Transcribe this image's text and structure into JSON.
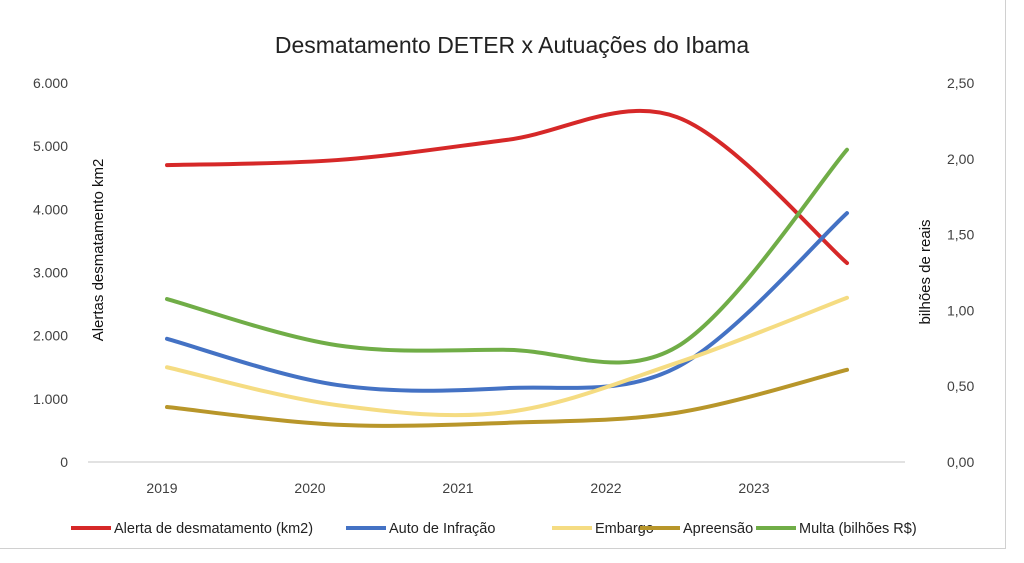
{
  "chart_data": {
    "type": "line",
    "title": "Desmatamento DETER x Autuações do Ibama",
    "xlabel": "",
    "ylabel_left": "Alertas desmatamento km2",
    "ylabel_right": "bilhões de reais",
    "categories": [
      "2019",
      "2020",
      "2021",
      "2022",
      "2023"
    ],
    "y_left": {
      "min": 0,
      "max": 6000,
      "ticks": [
        "0",
        "1.000",
        "2.000",
        "3.000",
        "4.000",
        "5.000",
        "6.000"
      ]
    },
    "y_right": {
      "min": 0,
      "max": 2.5,
      "ticks": [
        "0,00",
        "0,50",
        "1,00",
        "1,50",
        "2,00",
        "2,50"
      ]
    },
    "grid": false,
    "smooth": true,
    "legend_position": "bottom",
    "series": [
      {
        "name": "Alerta de desmatamento (km2)",
        "axis": "left",
        "color": "#d62828",
        "values": [
          4700,
          4780,
          5100,
          5460,
          3150
        ]
      },
      {
        "name": "Auto de Infração",
        "axis": "left",
        "color": "#4472c4",
        "values": [
          1950,
          1220,
          1170,
          1500,
          3940
        ]
      },
      {
        "name": "Embargo",
        "axis": "left",
        "color": "#f5dc82",
        "values": [
          1500,
          900,
          790,
          1570,
          2600
        ]
      },
      {
        "name": "Apreensão",
        "axis": "left",
        "color": "#b8962a",
        "values": [
          870,
          590,
          620,
          780,
          1460
        ]
      },
      {
        "name": "Multa (bilhões R$)",
        "axis": "right",
        "color": "#70ad47",
        "values": [
          1.075,
          0.77,
          0.74,
          0.76,
          2.06
        ]
      }
    ]
  }
}
